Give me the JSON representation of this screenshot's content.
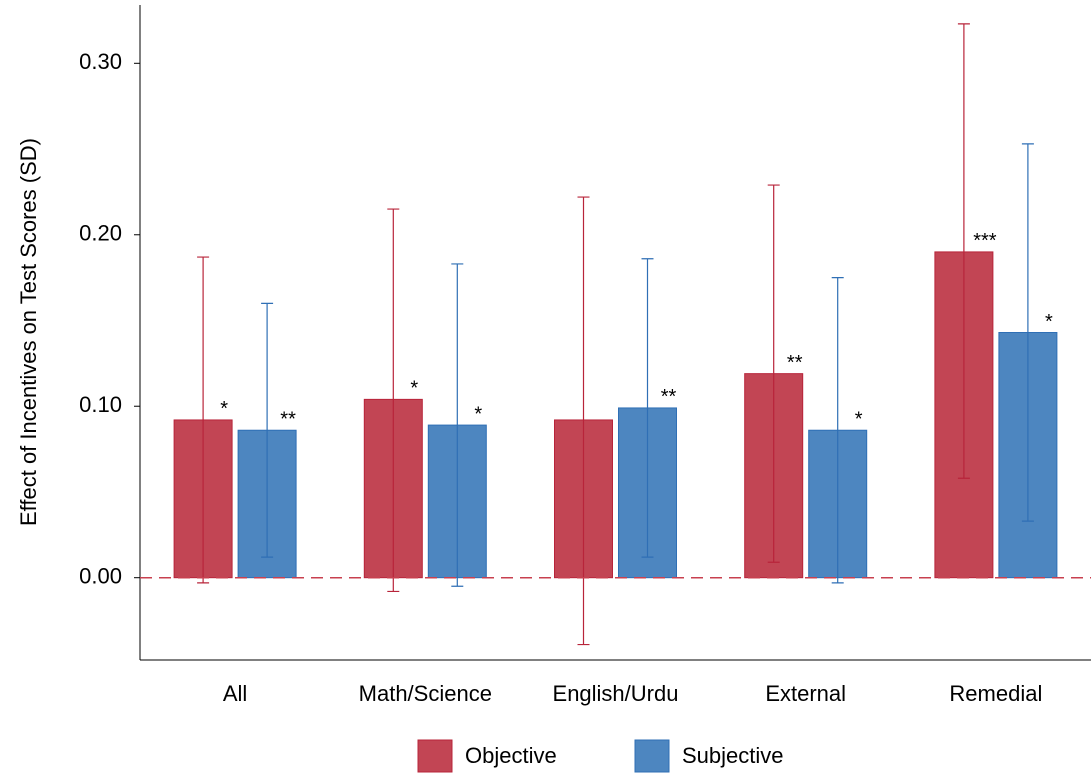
{
  "chart_data": {
    "type": "bar",
    "y_label": "Effect of Incentives on Test Scores (SD)",
    "categories": [
      "All",
      "Math/Science",
      "English/Urdu",
      "External",
      "Remedial"
    ],
    "series": [
      {
        "name": "Objective",
        "color": "#c24554",
        "values": [
          0.092,
          0.104,
          0.092,
          0.119,
          0.19
        ],
        "ci_low": [
          -0.003,
          -0.008,
          -0.039,
          0.009,
          0.058
        ],
        "ci_high": [
          0.187,
          0.215,
          0.222,
          0.229,
          0.323
        ],
        "significance": [
          "*",
          "*",
          null,
          "**",
          "***"
        ]
      },
      {
        "name": "Subjective",
        "color": "#4d86c0",
        "values": [
          0.086,
          0.089,
          0.099,
          0.086,
          0.143
        ],
        "ci_low": [
          0.012,
          -0.005,
          0.012,
          -0.003,
          0.033
        ],
        "ci_high": [
          0.16,
          0.183,
          0.186,
          0.175,
          0.253
        ],
        "significance": [
          "**",
          "*",
          "**",
          "*",
          "*"
        ]
      }
    ],
    "ylim": [
      -0.048,
      0.334
    ],
    "yticks": [
      {
        "value": 0,
        "label": "0.00"
      },
      {
        "value": 0.1,
        "label": "0.10"
      },
      {
        "value": 0.2,
        "label": "0.20"
      },
      {
        "value": 0.3,
        "label": "0.30"
      }
    ],
    "reference_line": 0,
    "legend": "bottom"
  }
}
